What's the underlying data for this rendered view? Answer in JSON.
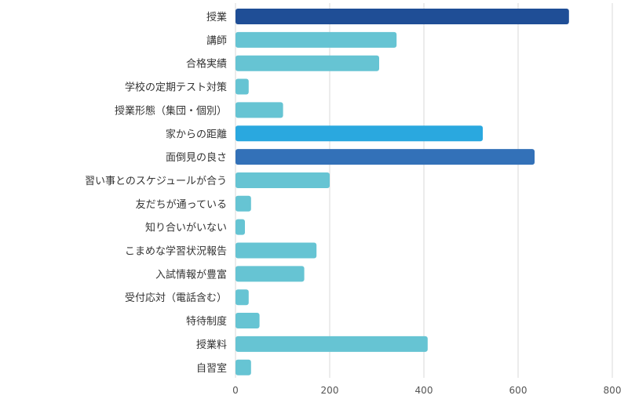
{
  "chart_data": {
    "type": "bar",
    "orientation": "horizontal",
    "categories": [
      "授業",
      "講師",
      "合格実績",
      "学校の定期テスト対策",
      "授業形態（集団・個別）",
      "家からの距離",
      "面倒見の良さ",
      "習い事とのスケジュールが合う",
      "友だちが通っている",
      "知り合いがいない",
      "こまめな学習状況報告",
      "入試情報が豊富",
      "受付応対（電話含む）",
      "特待制度",
      "授業料",
      "自習室"
    ],
    "values": [
      708,
      342,
      305,
      28,
      101,
      525,
      635,
      200,
      33,
      20,
      172,
      146,
      28,
      51,
      408,
      33
    ],
    "bar_colors": [
      "#1f4e96",
      "#66c4d3",
      "#66c4d3",
      "#66c4d3",
      "#66c4d3",
      "#2aa8df",
      "#3371b8",
      "#66c4d3",
      "#66c4d3",
      "#66c4d3",
      "#66c4d3",
      "#66c4d3",
      "#66c4d3",
      "#66c4d3",
      "#66c4d3",
      "#66c4d3"
    ],
    "xlim": [
      0,
      800
    ],
    "xticks": [
      0,
      200,
      400,
      600,
      800
    ],
    "xtick_labels": [
      "0",
      "200",
      "400",
      "600",
      "800"
    ],
    "grid": "vertical",
    "title": "",
    "xlabel": "",
    "ylabel": ""
  }
}
